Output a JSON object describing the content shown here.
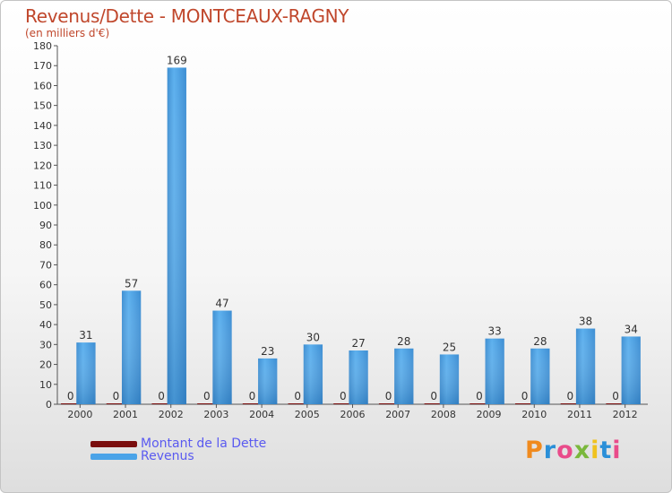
{
  "chart_data": {
    "type": "bar",
    "title": "Revenus/Dette - MONTCEAUX-RAGNY",
    "subtitle": "(en milliers d'€)",
    "categories": [
      "2000",
      "2001",
      "2002",
      "2003",
      "2004",
      "2005",
      "2006",
      "2007",
      "2008",
      "2009",
      "2010",
      "2011",
      "2012"
    ],
    "series": [
      {
        "name": "Montant de la Dette",
        "color": "#7a0d0d",
        "values": [
          0,
          0,
          0,
          0,
          0,
          0,
          0,
          0,
          0,
          0,
          0,
          0,
          0
        ]
      },
      {
        "name": "Revenus",
        "color": "#4aa3e8",
        "values": [
          31,
          57,
          169,
          47,
          23,
          30,
          27,
          28,
          25,
          33,
          28,
          38,
          34
        ]
      }
    ],
    "ylim": [
      0,
      180
    ],
    "yticks": [
      0,
      10,
      20,
      30,
      40,
      50,
      60,
      70,
      80,
      90,
      100,
      110,
      120,
      130,
      140,
      150,
      160,
      170,
      180
    ],
    "xlabel": "",
    "ylabel": ""
  },
  "legend": {
    "items": [
      {
        "label": "Montant de la Dette",
        "color": "#7a0d0d"
      },
      {
        "label": "Revenus",
        "color": "#4aa3e8"
      }
    ]
  },
  "logo": {
    "letters": [
      "P",
      "r",
      "o",
      "x",
      "i",
      "t",
      "i"
    ]
  }
}
